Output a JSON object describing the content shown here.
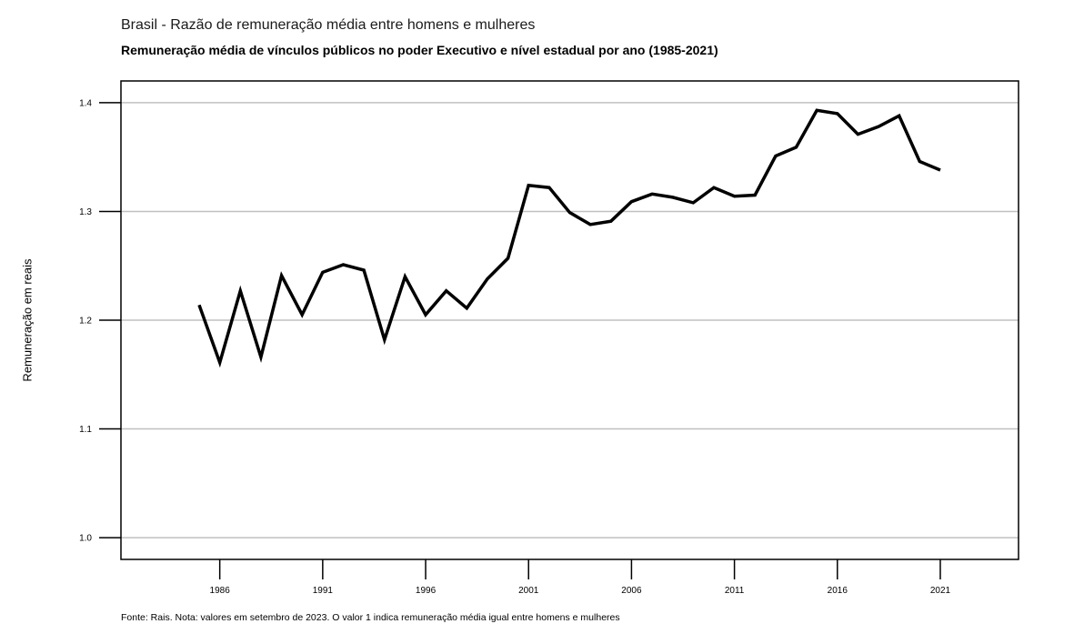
{
  "header": {
    "title": "Brasil - Razão de remuneração média entre homens e mulheres",
    "subtitle": "Remuneração média de vínculos públicos no poder Executivo e nível estadual por ano (1985-2021)"
  },
  "footer": {
    "caption": "Fonte: Rais. Nota: valores em setembro de 2023. O valor 1 indica remuneração média igual entre homens e mulheres"
  },
  "chart_data": {
    "type": "line",
    "title": "Brasil - Razão de remuneração média entre homens e mulheres",
    "subtitle": "Remuneração média de vínculos públicos no poder Executivo e nível estadual por ano (1985-2021)",
    "xlabel": "",
    "ylabel": "Remuneração em reais",
    "xlim": [
      1981.2,
      1982.2
    ],
    "x_range": [
      1981.2,
      2024.8
    ],
    "ylim": [
      0.98,
      1.42
    ],
    "grid": true,
    "x_ticks": [
      1986,
      1991,
      1996,
      2001,
      2006,
      2011,
      2016,
      2021
    ],
    "y_ticks": [
      1.0,
      1.1,
      1.2,
      1.3,
      1.4
    ],
    "y_tick_labels": [
      "1.0",
      "1.1",
      "1.2",
      "1.3",
      "1.4"
    ],
    "series": [
      {
        "x": [
          1985,
          1986,
          1987,
          1988,
          1989,
          1990,
          1991,
          1992,
          1993,
          1994,
          1995,
          1996,
          1997,
          1998,
          1999,
          2000,
          2001,
          2002,
          2003,
          2004,
          2005,
          2006,
          2007,
          2008,
          2009,
          2010,
          2011,
          2012,
          2013,
          2014,
          2015,
          2016,
          2017,
          2018,
          2019,
          2020,
          2021
        ],
        "values": [
          1.214,
          1.161,
          1.227,
          1.166,
          1.241,
          1.205,
          1.244,
          1.251,
          1.246,
          1.182,
          1.24,
          1.205,
          1.227,
          1.211,
          1.238,
          1.257,
          1.324,
          1.322,
          1.299,
          1.288,
          1.291,
          1.309,
          1.316,
          1.313,
          1.308,
          1.322,
          1.314,
          1.315,
          1.351,
          1.359,
          1.393,
          1.39,
          1.371,
          1.378,
          1.388,
          1.346,
          1.338
        ]
      }
    ],
    "colors": {
      "line": "#000000",
      "grid": "#c0c0c0",
      "frame": "#000000"
    }
  }
}
